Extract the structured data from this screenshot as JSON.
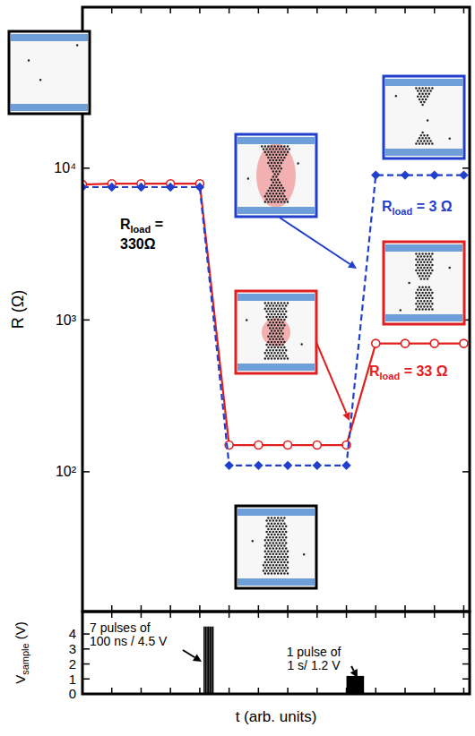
{
  "chart_data": [
    {
      "type": "line",
      "log": "y",
      "ylabel": "R (Ω)",
      "xlim": [
        0,
        13.2
      ],
      "xticks": [
        0,
        1,
        2,
        3,
        4,
        5,
        6,
        7,
        8,
        9,
        10,
        11,
        12,
        13
      ],
      "ylim": [
        12,
        115000
      ],
      "yticks": [
        {
          "value": 100,
          "label": "10²"
        },
        {
          "value": 1000,
          "label": "10³"
        },
        {
          "value": 10000,
          "label": "10⁴"
        }
      ],
      "tick_labels": "y",
      "series": [
        {
          "color": "#e02020",
          "marker": "circle",
          "line_style": "solid",
          "x": [
            0,
            1,
            2,
            3,
            4,
            5,
            6,
            7,
            8,
            9,
            10,
            11,
            12,
            13
          ],
          "values": [
            7800,
            7900,
            7900,
            7900,
            7900,
            150,
            150,
            150,
            150,
            150,
            700,
            700,
            700,
            700
          ]
        },
        {
          "color": "#1f3fcc",
          "marker": "diamond",
          "line_style": "dashed",
          "x": [
            0,
            1,
            2,
            3,
            4,
            5,
            6,
            7,
            8,
            9,
            10,
            11,
            12,
            13
          ],
          "values": [
            7500,
            7500,
            7500,
            7500,
            7500,
            110,
            110,
            110,
            110,
            110,
            9000,
            9000,
            9000,
            9000
          ]
        }
      ],
      "annotations": [
        {
          "text": "R",
          "sub": "load",
          "after": " =",
          "line2": "330Ω",
          "color": "#000000"
        },
        {
          "text": "R",
          "sub": "load",
          "after": " = 3 Ω",
          "color": "#1f3fcc"
        },
        {
          "text": "R",
          "sub": "load",
          "after": " = 33 Ω",
          "color": "#e02020"
        }
      ]
    },
    {
      "type": "bar",
      "ylabel": {
        "text": "V",
        "sub": "sample",
        "after": " (V)"
      },
      "xlabel": "t (arb. units)",
      "xlim": [
        0,
        13.2
      ],
      "xticks": [
        0,
        1,
        2,
        3,
        4,
        5,
        6,
        7,
        8,
        9,
        10,
        11,
        12,
        13
      ],
      "ylim": [
        0,
        5.5
      ],
      "yticks": [
        0,
        1,
        2,
        3,
        4
      ],
      "tick_labels": "y",
      "series": [
        {
          "color": "#000000",
          "x": [
            4.15,
            4.2,
            4.25,
            4.3,
            4.35,
            4.4,
            4.45
          ],
          "values": [
            4.5,
            4.5,
            4.5,
            4.5,
            4.5,
            4.5,
            4.5
          ]
        },
        {
          "color": "#000000",
          "x_start": [
            9.0
          ],
          "x_end": [
            9.6
          ],
          "values": [
            1.2
          ]
        }
      ],
      "annotations": [
        {
          "lines": [
            "7 pulses of",
            "100 ns / 4.5 V"
          ]
        },
        {
          "lines": [
            "1 pulse of",
            "1 s/ 1.2 V"
          ]
        }
      ]
    }
  ]
}
